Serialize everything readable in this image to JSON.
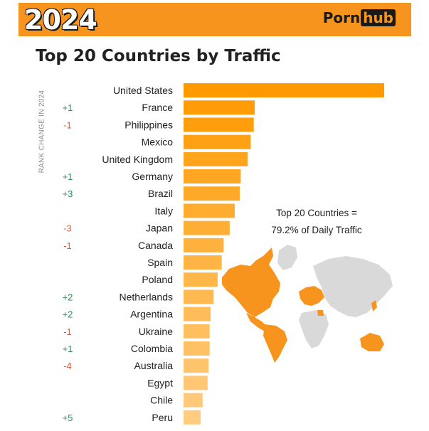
{
  "header": {
    "year": "2024",
    "brand_part1": "Porn",
    "brand_part2": "hub"
  },
  "colors": {
    "accent": "#f7941d",
    "bar_dark": "#ff9900",
    "bar_light": "#ffcc80",
    "positive": "#2e8b57",
    "negative": "#e05a3a",
    "map_base": "#d9d9d9"
  },
  "annotation": {
    "line1": "Top 20 Countries =",
    "line2": "79.2% of Daily Traffic"
  },
  "chart_data": {
    "type": "bar",
    "orientation": "horizontal",
    "title": "Top 20 Countries by Traffic",
    "rank_axis_label": "RANK CHANGE IN 2024",
    "categories": [
      "United States",
      "France",
      "Philippines",
      "Mexico",
      "United Kingdom",
      "Germany",
      "Brazil",
      "Italy",
      "Japan",
      "Canada",
      "Spain",
      "Poland",
      "Netherlands",
      "Argentina",
      "Ukraine",
      "Colombia",
      "Australia",
      "Egypt",
      "Chile",
      "Peru"
    ],
    "values": [
      100,
      35.5,
      35,
      33.5,
      32,
      28.5,
      28,
      25.5,
      23,
      20,
      19,
      17,
      15,
      13.5,
      13,
      13,
      12.5,
      12,
      9.5,
      8.5
    ],
    "rank_change": [
      "",
      "+1",
      "-1",
      "",
      "",
      "+1",
      "+3",
      "",
      "-3",
      "-1",
      "",
      "",
      "+2",
      "+2",
      "-1",
      "+1",
      "-4",
      "",
      "",
      "+5"
    ],
    "xlim": [
      0,
      100
    ],
    "grid": false,
    "legend": "none"
  }
}
